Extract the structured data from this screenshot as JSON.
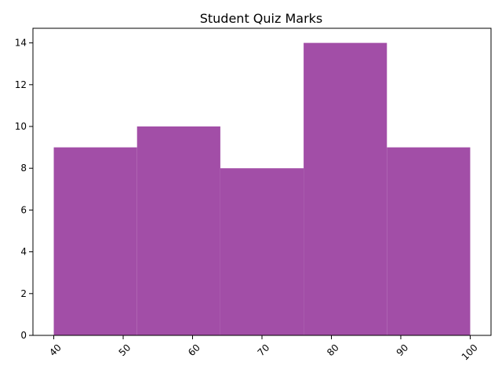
{
  "chart_data": {
    "type": "bar",
    "title": "Student Quiz Marks",
    "xlabel": "",
    "ylabel": "",
    "bin_edges": [
      40,
      52,
      64,
      76,
      88,
      100
    ],
    "values": [
      9,
      10,
      8,
      14,
      9
    ],
    "bar_color": "#a24ea7",
    "xlim": [
      37,
      103
    ],
    "ylim": [
      0,
      14.7
    ],
    "x_ticks": [
      40,
      50,
      60,
      70,
      80,
      90,
      100
    ],
    "x_tick_labels": [
      "40",
      "50",
      "60",
      "70",
      "80",
      "90",
      "100"
    ],
    "x_tick_rotation_deg": 45,
    "y_ticks": [
      0,
      2,
      4,
      6,
      8,
      10,
      12,
      14
    ],
    "y_tick_labels": [
      "0",
      "2",
      "4",
      "6",
      "8",
      "10",
      "12",
      "14"
    ],
    "grid": false,
    "legend": "none"
  }
}
